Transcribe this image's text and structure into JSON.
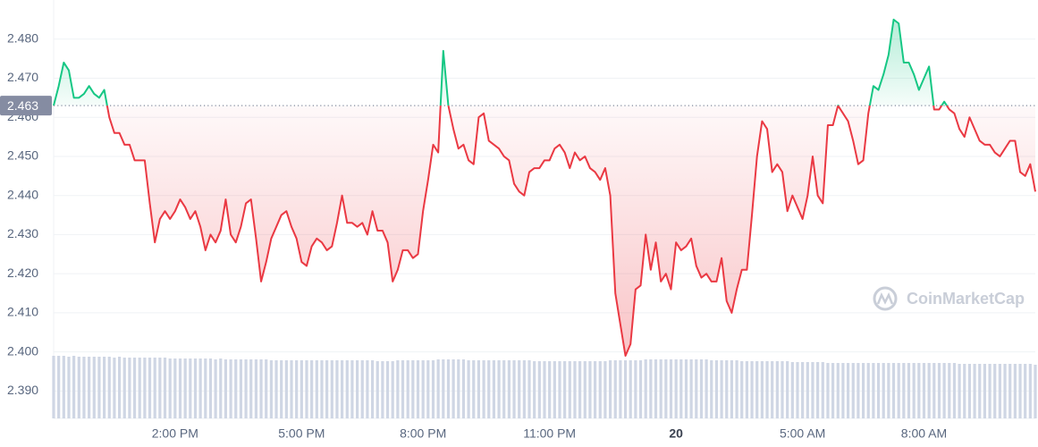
{
  "chart_data": {
    "type": "line",
    "baseline": 2.463,
    "watermark": "CoinMarketCap",
    "ylim": [
      2.383,
      2.49
    ],
    "yticks": [
      {
        "value": 2.39,
        "label": "2.390"
      },
      {
        "value": 2.4,
        "label": "2.400"
      },
      {
        "value": 2.41,
        "label": "2.410"
      },
      {
        "value": 2.42,
        "label": "2.420"
      },
      {
        "value": 2.43,
        "label": "2.430"
      },
      {
        "value": 2.44,
        "label": "2.440"
      },
      {
        "value": 2.45,
        "label": "2.450"
      },
      {
        "value": 2.46,
        "label": "2.460"
      },
      {
        "value": 2.47,
        "label": "2.470"
      },
      {
        "value": 2.48,
        "label": "2.480"
      }
    ],
    "grid": true,
    "up_color": "#16c784",
    "down_color": "#ea3943",
    "volume_color": "#cfd6e4",
    "categories": [
      null,
      null,
      null,
      null,
      null,
      null,
      null,
      null,
      null,
      null,
      null,
      null,
      null,
      null,
      null,
      null,
      null,
      null,
      null,
      null,
      null,
      null,
      null,
      null,
      "2:00 PM",
      null,
      null,
      null,
      null,
      null,
      null,
      null,
      null,
      null,
      null,
      null,
      null,
      null,
      null,
      null,
      null,
      null,
      null,
      null,
      null,
      null,
      null,
      null,
      null,
      "5:00 PM",
      null,
      null,
      null,
      null,
      null,
      null,
      null,
      null,
      null,
      null,
      null,
      null,
      null,
      null,
      null,
      null,
      null,
      null,
      null,
      null,
      null,
      null,
      null,
      "8:00 PM",
      null,
      null,
      null,
      null,
      null,
      null,
      null,
      null,
      null,
      null,
      null,
      null,
      null,
      null,
      null,
      null,
      null,
      null,
      null,
      null,
      null,
      null,
      null,
      null,
      "11:00 PM",
      null,
      null,
      null,
      null,
      null,
      null,
      null,
      null,
      null,
      null,
      null,
      null,
      null,
      null,
      null,
      null,
      null,
      null,
      null,
      null,
      null,
      null,
      null,
      null,
      "20",
      null,
      null,
      null,
      null,
      null,
      null,
      null,
      null,
      null,
      null,
      null,
      null,
      null,
      null,
      null,
      null,
      null,
      null,
      null,
      null,
      null,
      null,
      null,
      null,
      "5:00 AM",
      null,
      null,
      null,
      null,
      null,
      null,
      null,
      null,
      null,
      null,
      null,
      null,
      null,
      null,
      null,
      null,
      null,
      null,
      null,
      null,
      null,
      null,
      null,
      "8:00 AM",
      null,
      null,
      null,
      null,
      null,
      null,
      null,
      null,
      null,
      null,
      null,
      null,
      null,
      null,
      null,
      null,
      null,
      null,
      null,
      null,
      null,
      null
    ],
    "values": [
      2.463,
      2.468,
      2.474,
      2.472,
      2.465,
      2.465,
      2.466,
      2.468,
      2.466,
      2.465,
      2.467,
      2.46,
      2.456,
      2.456,
      2.453,
      2.453,
      2.449,
      2.449,
      2.449,
      2.438,
      2.428,
      2.434,
      2.436,
      2.434,
      2.436,
      2.439,
      2.437,
      2.434,
      2.436,
      2.432,
      2.426,
      2.43,
      2.428,
      2.431,
      2.439,
      2.43,
      2.428,
      2.432,
      2.438,
      2.439,
      2.429,
      2.418,
      2.423,
      2.429,
      2.432,
      2.435,
      2.436,
      2.432,
      2.429,
      2.423,
      2.422,
      2.427,
      2.429,
      2.428,
      2.426,
      2.427,
      2.433,
      2.44,
      2.433,
      2.433,
      2.432,
      2.433,
      2.43,
      2.436,
      2.431,
      2.431,
      2.428,
      2.418,
      2.421,
      2.426,
      2.426,
      2.424,
      2.425,
      2.436,
      2.444,
      2.453,
      2.451,
      2.477,
      2.463,
      2.457,
      2.452,
      2.453,
      2.449,
      2.448,
      2.46,
      2.461,
      2.454,
      2.453,
      2.452,
      2.45,
      2.449,
      2.443,
      2.441,
      2.44,
      2.446,
      2.447,
      2.447,
      2.449,
      2.449,
      2.452,
      2.453,
      2.451,
      2.447,
      2.451,
      2.449,
      2.45,
      2.447,
      2.446,
      2.444,
      2.447,
      2.44,
      2.415,
      2.407,
      2.399,
      2.402,
      2.416,
      2.417,
      2.43,
      2.421,
      2.428,
      2.418,
      2.42,
      2.416,
      2.428,
      2.426,
      2.427,
      2.429,
      2.422,
      2.419,
      2.42,
      2.418,
      2.418,
      2.424,
      2.413,
      2.41,
      2.416,
      2.421,
      2.421,
      2.435,
      2.45,
      2.459,
      2.457,
      2.446,
      2.448,
      2.446,
      2.436,
      2.44,
      2.437,
      2.434,
      2.44,
      2.45,
      2.44,
      2.438,
      2.458,
      2.458,
      2.463,
      2.461,
      2.459,
      2.454,
      2.448,
      2.449,
      2.461,
      2.468,
      2.467,
      2.471,
      2.476,
      2.485,
      2.484,
      2.474,
      2.474,
      2.471,
      2.467,
      2.47,
      2.473,
      2.462,
      2.462,
      2.464,
      2.462,
      2.461,
      2.457,
      2.455,
      2.46,
      2.457,
      2.454,
      2.453,
      2.453,
      2.451,
      2.45,
      2.452,
      2.454,
      2.454,
      2.446,
      2.445,
      2.448,
      2.441
    ],
    "volume_lim": [
      0,
      100
    ],
    "volume": [
      70,
      70,
      70,
      69,
      70,
      69,
      69,
      69,
      69,
      69,
      69,
      69,
      68,
      69,
      68,
      68,
      68,
      68,
      68,
      68,
      68,
      68,
      68,
      67,
      67,
      67,
      67,
      67,
      67,
      67,
      67,
      67,
      66,
      67,
      66,
      66,
      66,
      66,
      66,
      66,
      66,
      66,
      66,
      65,
      65,
      65,
      65,
      65,
      65,
      65,
      65,
      65,
      65,
      65,
      65,
      65,
      65,
      65,
      65,
      65,
      65,
      65,
      65,
      65,
      64,
      64,
      64,
      64,
      65,
      65,
      65,
      65,
      65,
      65,
      65,
      65,
      66,
      66,
      66,
      66,
      66,
      66,
      65,
      65,
      65,
      65,
      65,
      65,
      65,
      65,
      65,
      65,
      65,
      65,
      65,
      64,
      64,
      64,
      64,
      64,
      64,
      64,
      64,
      64,
      64,
      64,
      64,
      64,
      64,
      64,
      65,
      65,
      65,
      65,
      65,
      65,
      65,
      66,
      66,
      66,
      66,
      66,
      66,
      66,
      66,
      66,
      66,
      66,
      66,
      66,
      65,
      65,
      65,
      65,
      65,
      65,
      64,
      64,
      64,
      64,
      64,
      64,
      64,
      64,
      64,
      64,
      63,
      63,
      63,
      63,
      63,
      63,
      63,
      62,
      62,
      62,
      62,
      62,
      62,
      62,
      62,
      62,
      62,
      62,
      62,
      62,
      62,
      62,
      62,
      62,
      62,
      62,
      62,
      62,
      62,
      62,
      62,
      62,
      62,
      61,
      61,
      61,
      61,
      61,
      61,
      61,
      61,
      61,
      61,
      61,
      61,
      61,
      61,
      61,
      60
    ]
  }
}
